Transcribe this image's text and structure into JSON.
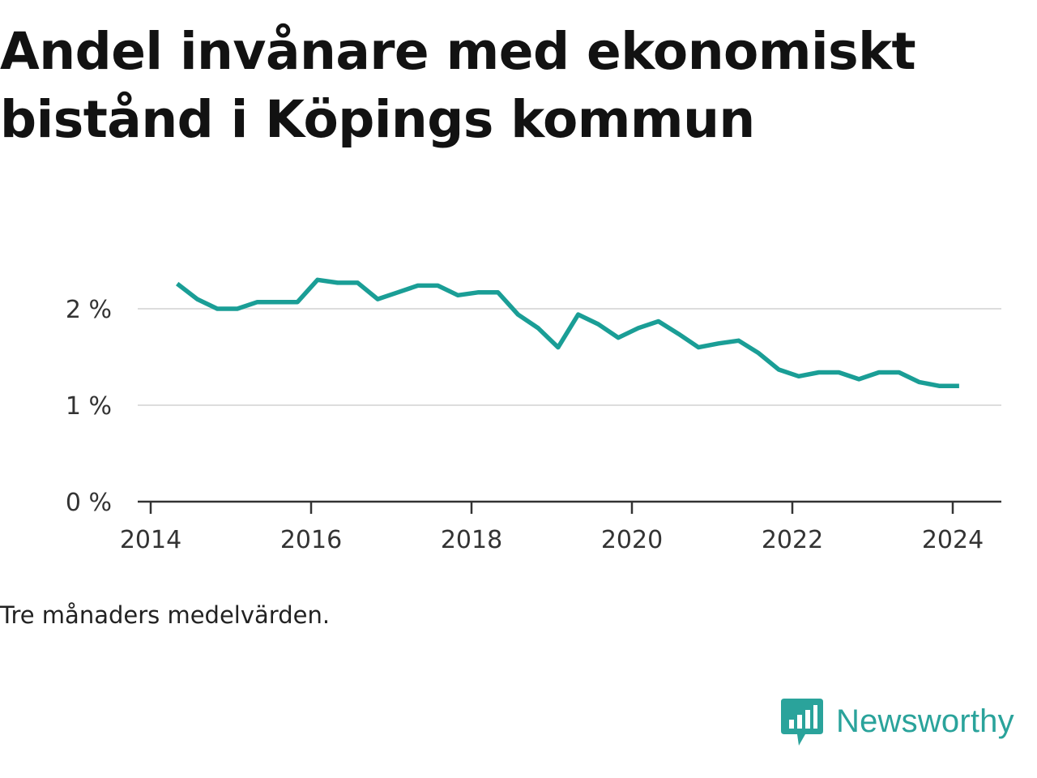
{
  "title": "Andel invånare med ekonomiskt bistånd i Köpings kommun",
  "caption": "Tre månaders medelvärden.",
  "brand": {
    "name": "Newsworthy",
    "icon": "bar-chart-speech-bubble-icon",
    "color": "#2aa39b"
  },
  "chart_data": {
    "type": "line",
    "title": "Andel invånare med ekonomiskt bistånd i Köpings kommun",
    "xlabel": "",
    "ylabel": "",
    "x_ticks": [
      "2014",
      "2016",
      "2018",
      "2020",
      "2022",
      "2024"
    ],
    "y_ticks": [
      "0 %",
      "1 %",
      "2 %"
    ],
    "ylim": [
      0,
      2.6
    ],
    "xlim": [
      2013.9,
      2024.6
    ],
    "grid": true,
    "line_color": "#1a9e96",
    "series": [
      {
        "x": [
          2014.33,
          2014.58,
          2014.83,
          2015.08,
          2015.33,
          2015.58,
          2015.83,
          2016.08,
          2016.33,
          2016.58,
          2016.83,
          2017.08,
          2017.33,
          2017.58,
          2017.83,
          2018.08,
          2018.33,
          2018.58,
          2018.83,
          2019.08,
          2019.33,
          2019.58,
          2019.83,
          2020.08,
          2020.33,
          2020.58,
          2020.83,
          2021.08,
          2021.33,
          2021.58,
          2021.83,
          2022.08,
          2022.33,
          2022.58,
          2022.83,
          2023.08,
          2023.33,
          2023.58,
          2023.83,
          2024.08
        ],
        "values": [
          2.26,
          2.1,
          2.0,
          2.0,
          2.07,
          2.07,
          2.07,
          2.3,
          2.27,
          2.27,
          2.1,
          2.17,
          2.24,
          2.24,
          2.14,
          2.17,
          2.17,
          1.94,
          1.8,
          1.6,
          1.94,
          1.84,
          1.7,
          1.8,
          1.87,
          1.74,
          1.6,
          1.64,
          1.67,
          1.54,
          1.37,
          1.3,
          1.34,
          1.34,
          1.27,
          1.34,
          1.34,
          1.24,
          1.2,
          1.2
        ]
      }
    ]
  }
}
